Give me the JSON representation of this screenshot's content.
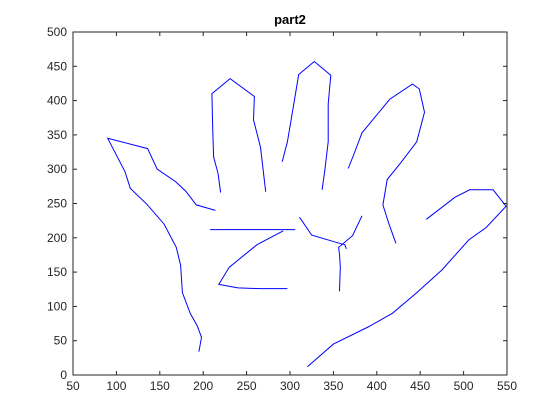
{
  "chart_data": {
    "type": "line",
    "title": "part2",
    "xlabel": "",
    "ylabel": "",
    "xlim": [
      50,
      550
    ],
    "ylim": [
      0,
      500
    ],
    "x_ticks": [
      50,
      100,
      150,
      200,
      250,
      300,
      350,
      400,
      450,
      500,
      550
    ],
    "y_ticks": [
      0,
      50,
      100,
      150,
      200,
      250,
      300,
      350,
      400,
      450,
      500
    ],
    "grid": false,
    "line_color": "#0000ff",
    "axis_color": "#262626",
    "series": [
      {
        "x": [
          195,
          198,
          193,
          185,
          176,
          174,
          169,
          155,
          135,
          116,
          110,
          90,
          136,
          147,
          168,
          180,
          192,
          214
        ],
        "y": [
          34,
          55,
          72,
          90,
          120,
          160,
          186,
          220,
          249,
          272,
          296,
          345,
          330,
          300,
          282,
          268,
          248,
          240
        ]
      },
      {
        "x": [
          220,
          217,
          212,
          211,
          210,
          231,
          259,
          258,
          266,
          272
        ],
        "y": [
          266,
          294,
          318,
          360,
          410,
          432,
          406,
          372,
          332,
          267
        ]
      },
      {
        "x": [
          291,
          297,
          301,
          310,
          328,
          347,
          344,
          344,
          340,
          337
        ],
        "y": [
          311,
          340,
          370,
          438,
          457,
          437,
          395,
          340,
          297,
          270
        ]
      },
      {
        "x": [
          367,
          373,
          383,
          415,
          441,
          449,
          455,
          446,
          428,
          412,
          407,
          414,
          422
        ],
        "y": [
          301,
          320,
          353,
          402,
          424,
          417,
          383,
          340,
          310,
          285,
          248,
          220,
          192
        ]
      },
      {
        "x": [
          208,
          230,
          260,
          306
        ],
        "y": [
          212,
          212,
          212,
          212
        ]
      },
      {
        "x": [
          292,
          262,
          230,
          218,
          240,
          265,
          297
        ],
        "y": [
          210,
          190,
          157,
          132,
          127,
          126,
          126
        ]
      },
      {
        "x": [
          311,
          325,
          357,
          363,
          365
        ],
        "y": [
          230,
          204,
          192,
          190,
          184
        ]
      },
      {
        "x": [
          357,
          358,
          357,
          356,
          372,
          383
        ],
        "y": [
          122,
          158,
          176,
          186,
          203,
          232
        ]
      },
      {
        "x": [
          320,
          350,
          390,
          418,
          446,
          475,
          506,
          526,
          549,
          534,
          507,
          490,
          457
        ],
        "y": [
          12,
          45,
          70,
          90,
          120,
          153,
          197,
          215,
          246,
          270,
          270,
          259,
          227
        ]
      }
    ]
  }
}
